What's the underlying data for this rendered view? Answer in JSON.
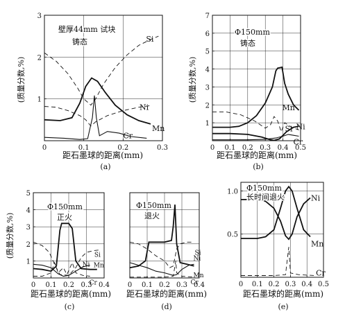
{
  "chart_data": [
    {
      "id": "a",
      "type": "line",
      "annotation_lines": [
        "壁厚44mm 试块",
        "铸态"
      ],
      "ylabel": "(质量分数,%)",
      "xlabel": "距石墨球的距离(mm)",
      "caption": "(a)",
      "xlim": [
        0,
        0.3
      ],
      "ylim": [
        0,
        3
      ],
      "xticks": [
        "0",
        "0.1",
        "0.2",
        "0.3"
      ],
      "yticks": [
        "1",
        "2",
        "3"
      ],
      "grid": true,
      "series": [
        {
          "name": "Si",
          "style": "dash",
          "points": [
            [
              0,
              2.1
            ],
            [
              0.03,
              1.9
            ],
            [
              0.06,
              1.6
            ],
            [
              0.085,
              1.25
            ],
            [
              0.1,
              1.0
            ],
            [
              0.11,
              0.92
            ],
            [
              0.118,
              0.85
            ],
            [
              0.13,
              1.0
            ],
            [
              0.15,
              1.35
            ],
            [
              0.18,
              1.75
            ],
            [
              0.21,
              2.05
            ],
            [
              0.24,
              2.28
            ],
            [
              0.27,
              2.42
            ],
            [
              0.29,
              2.5
            ]
          ]
        },
        {
          "name": "Mn",
          "style": "solid",
          "points": [
            [
              0,
              0.5
            ],
            [
              0.04,
              0.48
            ],
            [
              0.07,
              0.55
            ],
            [
              0.09,
              0.9
            ],
            [
              0.105,
              1.3
            ],
            [
              0.12,
              1.5
            ],
            [
              0.135,
              1.42
            ],
            [
              0.155,
              1.15
            ],
            [
              0.18,
              0.85
            ],
            [
              0.21,
              0.62
            ],
            [
              0.24,
              0.48
            ],
            [
              0.27,
              0.4
            ]
          ]
        },
        {
          "name": "Ni",
          "style": "dash",
          "points": [
            [
              0,
              0.82
            ],
            [
              0.03,
              0.8
            ],
            [
              0.06,
              0.72
            ],
            [
              0.09,
              0.6
            ],
            [
              0.105,
              0.5
            ],
            [
              0.118,
              0.35
            ],
            [
              0.13,
              0.45
            ],
            [
              0.16,
              0.6
            ],
            [
              0.2,
              0.72
            ],
            [
              0.24,
              0.8
            ],
            [
              0.27,
              0.84
            ]
          ]
        },
        {
          "name": "Cr",
          "style": "thin",
          "points": [
            [
              0,
              0.08
            ],
            [
              0.05,
              0.06
            ],
            [
              0.09,
              0.03
            ],
            [
              0.11,
              0.05
            ],
            [
              0.122,
              0.55
            ],
            [
              0.127,
              1.08
            ],
            [
              0.132,
              0.55
            ],
            [
              0.14,
              0.12
            ],
            [
              0.16,
              0.22
            ],
            [
              0.19,
              0.18
            ],
            [
              0.22,
              0.1
            ],
            [
              0.26,
              0.06
            ]
          ]
        }
      ]
    },
    {
      "id": "b",
      "type": "line",
      "annotation_lines": [
        "Φ150mm",
        "铸态"
      ],
      "ylabel": "(质量分数,%)",
      "xlabel": "距石墨球的距离(mm)",
      "caption": "(b)",
      "xlim": [
        0,
        0.5
      ],
      "ylim": [
        0,
        7
      ],
      "xticks": [
        "0",
        "0.1",
        "0.2",
        "0.3",
        "0.4",
        "0.5"
      ],
      "yticks": [
        "1",
        "2",
        "3",
        "4",
        "5",
        "6",
        "7"
      ],
      "grid": true,
      "series": [
        {
          "name": "Mn",
          "style": "solid",
          "points": [
            [
              0,
              0.75
            ],
            [
              0.1,
              0.75
            ],
            [
              0.15,
              0.8
            ],
            [
              0.2,
              1.0
            ],
            [
              0.25,
              1.4
            ],
            [
              0.3,
              2.1
            ],
            [
              0.34,
              3.0
            ],
            [
              0.36,
              3.9
            ],
            [
              0.37,
              4.05
            ],
            [
              0.395,
              4.1
            ],
            [
              0.41,
              3.2
            ],
            [
              0.43,
              2.6
            ],
            [
              0.46,
              2.0
            ],
            [
              0.49,
              1.7
            ]
          ]
        },
        {
          "name": "Si",
          "style": "dash",
          "points": [
            [
              0,
              1.6
            ],
            [
              0.08,
              1.6
            ],
            [
              0.16,
              1.45
            ],
            [
              0.24,
              1.1
            ],
            [
              0.3,
              0.7
            ],
            [
              0.33,
              0.9
            ],
            [
              0.35,
              1.35
            ],
            [
              0.37,
              1.1
            ],
            [
              0.39,
              0.5
            ],
            [
              0.41,
              1.0
            ],
            [
              0.45,
              0.75
            ],
            [
              0.49,
              0.6
            ]
          ]
        },
        {
          "name": "Ni",
          "style": "solid",
          "points": [
            [
              0,
              0.4
            ],
            [
              0.1,
              0.4
            ],
            [
              0.2,
              0.35
            ],
            [
              0.28,
              0.2
            ],
            [
              0.33,
              0.05
            ],
            [
              0.35,
              0.02
            ],
            [
              0.38,
              0.1
            ],
            [
              0.42,
              0.5
            ],
            [
              0.46,
              0.75
            ],
            [
              0.49,
              0.8
            ]
          ]
        },
        {
          "name": "Cr",
          "style": "thin",
          "points": [
            [
              0,
              0.05
            ],
            [
              0.2,
              0.05
            ],
            [
              0.3,
              0.08
            ],
            [
              0.36,
              0.15
            ],
            [
              0.4,
              0.25
            ],
            [
              0.43,
              0.35
            ],
            [
              0.46,
              0.3
            ],
            [
              0.49,
              0.25
            ]
          ]
        }
      ]
    },
    {
      "id": "c",
      "type": "line",
      "annotation_lines": [
        "Φ150mm",
        "正火"
      ],
      "ylabel": "(质量分数,%)",
      "xlabel": "距石墨球的距离(mm)",
      "caption": "(c)",
      "xlim": [
        0,
        0.4
      ],
      "ylim": [
        0,
        5
      ],
      "xticks": [
        "0",
        "0.1",
        "0.2",
        "0.3",
        "0.4"
      ],
      "yticks": [
        "1",
        "2",
        "3",
        "4",
        "5"
      ],
      "grid": true,
      "series": [
        {
          "name": "Mn",
          "style": "solid",
          "points": [
            [
              0,
              0.55
            ],
            [
              0.05,
              0.5
            ],
            [
              0.1,
              0.4
            ],
            [
              0.13,
              0.7
            ],
            [
              0.15,
              2.8
            ],
            [
              0.16,
              3.2
            ],
            [
              0.2,
              3.2
            ],
            [
              0.22,
              2.9
            ],
            [
              0.24,
              1.0
            ],
            [
              0.27,
              0.55
            ],
            [
              0.32,
              0.5
            ],
            [
              0.36,
              0.5
            ]
          ]
        },
        {
          "name": "Si",
          "style": "dash",
          "points": [
            [
              0,
              2.1
            ],
            [
              0.05,
              1.9
            ],
            [
              0.09,
              1.5
            ],
            [
              0.12,
              0.8
            ],
            [
              0.15,
              0.2
            ],
            [
              0.2,
              0.15
            ],
            [
              0.24,
              0.6
            ],
            [
              0.27,
              1.2
            ],
            [
              0.3,
              1.5
            ],
            [
              0.34,
              1.6
            ],
            [
              0.38,
              1.65
            ]
          ]
        },
        {
          "name": "Ni",
          "style": "thin",
          "points": [
            [
              0,
              0.8
            ],
            [
              0.05,
              0.75
            ],
            [
              0.1,
              0.6
            ],
            [
              0.14,
              0.25
            ],
            [
              0.17,
              0.1
            ],
            [
              0.2,
              0.15
            ],
            [
              0.24,
              0.4
            ],
            [
              0.28,
              0.65
            ],
            [
              0.32,
              0.75
            ]
          ]
        },
        {
          "name": "Cr",
          "style": "dash",
          "points": [
            [
              0,
              0.1
            ],
            [
              0.05,
              0.1
            ],
            [
              0.1,
              0.3
            ],
            [
              0.12,
              0.9
            ],
            [
              0.14,
              0.3
            ],
            [
              0.17,
              0.6
            ],
            [
              0.19,
              0.2
            ],
            [
              0.22,
              0.9
            ],
            [
              0.24,
              0.3
            ],
            [
              0.28,
              0.15
            ],
            [
              0.32,
              0.1
            ]
          ]
        }
      ]
    },
    {
      "id": "d",
      "type": "line",
      "annotation_lines": [
        "Φ150mm",
        "退火"
      ],
      "ylabel": "",
      "xlabel": "距石墨球的距离(mm)",
      "caption": "(d)",
      "xlim": [
        0,
        0.4
      ],
      "ylim": [
        0,
        5
      ],
      "xticks": [
        "0",
        "0.1",
        "0.2",
        "0.3",
        "0.4"
      ],
      "yticks": [],
      "grid": true,
      "series": [
        {
          "name": "Mn",
          "style": "solid",
          "points": [
            [
              0,
              0.6
            ],
            [
              0.05,
              0.7
            ],
            [
              0.09,
              1.0
            ],
            [
              0.11,
              2.1
            ],
            [
              0.2,
              2.1
            ],
            [
              0.24,
              2.2
            ],
            [
              0.25,
              3.0
            ],
            [
              0.26,
              4.3
            ],
            [
              0.27,
              2.0
            ],
            [
              0.29,
              0.9
            ],
            [
              0.33,
              0.8
            ],
            [
              0.37,
              0.7
            ]
          ]
        },
        {
          "name": "Si",
          "style": "dash",
          "points": [
            [
              0,
              2.1
            ],
            [
              0.05,
              2.0
            ],
            [
              0.1,
              1.7
            ],
            [
              0.15,
              1.3
            ],
            [
              0.2,
              1.0
            ],
            [
              0.23,
              0.6
            ],
            [
              0.25,
              0.7
            ],
            [
              0.27,
              1.7
            ],
            [
              0.29,
              2.0
            ],
            [
              0.33,
              2.1
            ],
            [
              0.37,
              2.1
            ]
          ]
        },
        {
          "name": "Ni",
          "style": "thin",
          "points": [
            [
              0,
              0.9
            ],
            [
              0.05,
              0.75
            ],
            [
              0.1,
              0.6
            ],
            [
              0.15,
              0.4
            ],
            [
              0.2,
              0.3
            ],
            [
              0.25,
              0.15
            ],
            [
              0.27,
              0.2
            ],
            [
              0.3,
              0.5
            ],
            [
              0.34,
              0.75
            ],
            [
              0.37,
              0.8
            ]
          ]
        },
        {
          "name": "Cr",
          "style": "dash",
          "points": [
            [
              0,
              0.05
            ],
            [
              0.2,
              0.05
            ],
            [
              0.25,
              0.1
            ],
            [
              0.265,
              1.0
            ],
            [
              0.27,
              0.3
            ],
            [
              0.3,
              0.1
            ],
            [
              0.37,
              0.05
            ]
          ]
        }
      ]
    },
    {
      "id": "e",
      "type": "line",
      "annotation_lines": [
        "Φ150mm",
        "长时间退火"
      ],
      "ylabel": "",
      "xlabel": "距石墨球的距离(mm)",
      "caption": "(e)",
      "xlim": [
        0,
        0.5
      ],
      "ylim": [
        0,
        1.1
      ],
      "xticks": [
        "0",
        "0.1",
        "0.2",
        "0.3",
        "0.4",
        "0.5"
      ],
      "yticks": [
        "0.5",
        "1.0"
      ],
      "grid": true,
      "series": [
        {
          "name": "Ni",
          "style": "solid",
          "points": [
            [
              0,
              0.9
            ],
            [
              0.1,
              0.9
            ],
            [
              0.15,
              0.88
            ],
            [
              0.2,
              0.8
            ],
            [
              0.24,
              0.65
            ],
            [
              0.27,
              0.48
            ],
            [
              0.29,
              0.44
            ],
            [
              0.31,
              0.5
            ],
            [
              0.34,
              0.7
            ],
            [
              0.38,
              0.85
            ],
            [
              0.42,
              0.92
            ]
          ]
        },
        {
          "name": "Mn",
          "style": "solid",
          "points": [
            [
              0,
              0.45
            ],
            [
              0.1,
              0.45
            ],
            [
              0.15,
              0.47
            ],
            [
              0.2,
              0.55
            ],
            [
              0.24,
              0.8
            ],
            [
              0.27,
              1.0
            ],
            [
              0.29,
              1.05
            ],
            [
              0.31,
              1.0
            ],
            [
              0.34,
              0.8
            ],
            [
              0.38,
              0.55
            ],
            [
              0.42,
              0.47
            ]
          ]
        },
        {
          "name": "Cr",
          "style": "dash",
          "points": [
            [
              0,
              0.02
            ],
            [
              0.2,
              0.02
            ],
            [
              0.27,
              0.03
            ],
            [
              0.29,
              0.35
            ],
            [
              0.3,
              0.05
            ],
            [
              0.35,
              0.03
            ],
            [
              0.45,
              0.02
            ]
          ]
        }
      ]
    }
  ]
}
